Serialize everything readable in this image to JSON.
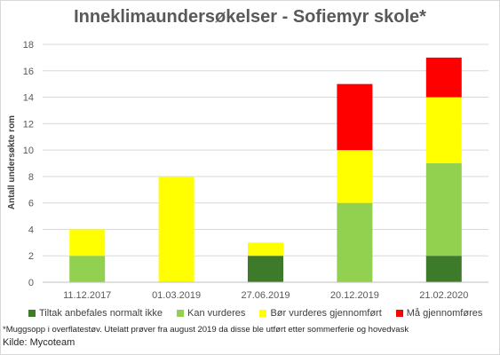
{
  "chart_data": {
    "type": "bar",
    "stacked": true,
    "title": "Inneklimaundersøkelser - Sofiemyr skole*",
    "ylabel": "Antall undersøkte rom",
    "xlabel": "",
    "ylim": [
      0,
      18
    ],
    "yticks": [
      0,
      2,
      4,
      6,
      8,
      10,
      12,
      14,
      16,
      18
    ],
    "grid": true,
    "legend_position": "bottom",
    "categories": [
      "11.12.2017",
      "01.03.2019",
      "27.06.2019",
      "20.12.2019",
      "21.02.2020"
    ],
    "series": [
      {
        "name": "Tiltak anbefales normalt ikke",
        "color": "#3d7a2a",
        "values": [
          0,
          0,
          2,
          0,
          2
        ]
      },
      {
        "name": "Kan vurderes",
        "color": "#92d050",
        "values": [
          2,
          0,
          0,
          6,
          7
        ]
      },
      {
        "name": "Bør vurderes gjennomført",
        "color": "#ffff00",
        "values": [
          2,
          8,
          1,
          4,
          5
        ]
      },
      {
        "name": "Må gjennomføres",
        "color": "#ff0000",
        "values": [
          0,
          0,
          0,
          5,
          3
        ]
      }
    ]
  },
  "footnote": "*Muggsopp i overflatestøv. Utelatt prøver fra august 2019 da disse ble utført etter sommerferie og hovedvask",
  "source": "Kilde: Mycoteam"
}
